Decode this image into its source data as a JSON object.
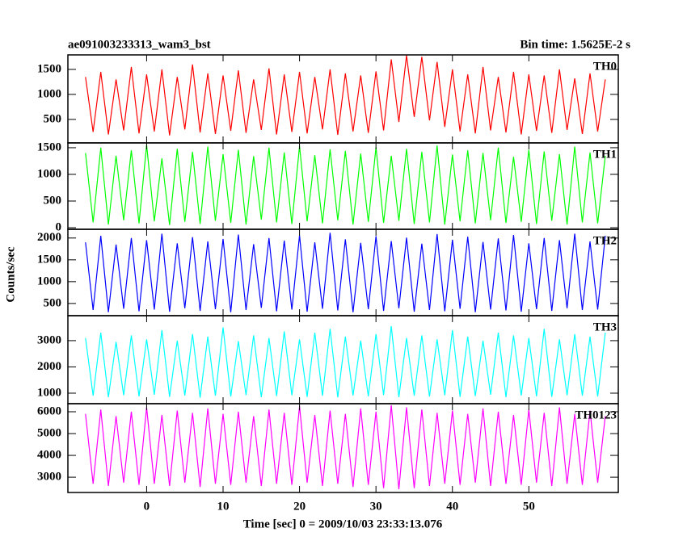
{
  "title": "ae091003233313_wam3_bst",
  "subtitle": "Bin time: 1.5625E-2 s",
  "ylabel": "Counts/sec",
  "xlabel": "Time [sec] 0 = 2009/10/03 23:33:13.076",
  "chart_data": [
    {
      "type": "line",
      "label": "TH0",
      "color": "#ff0000",
      "xlim": [
        -10.3,
        61.7
      ],
      "xticks": [
        0,
        10,
        20,
        30,
        40,
        50
      ],
      "ylim": [
        30,
        1790
      ],
      "yticks": [
        500,
        1000,
        1500
      ],
      "x": [
        -8,
        -7,
        -6,
        -5,
        -4,
        -3,
        -2,
        -1,
        0,
        1,
        2,
        3,
        4,
        5,
        6,
        7,
        8,
        9,
        10,
        11,
        12,
        13,
        14,
        15,
        16,
        17,
        18,
        19,
        20,
        21,
        22,
        23,
        24,
        25,
        26,
        27,
        28,
        29,
        30,
        31,
        32,
        33,
        34,
        35,
        36,
        37,
        38,
        39,
        40,
        41,
        42,
        43,
        44,
        45,
        46,
        47,
        48,
        49,
        50,
        51,
        52,
        53,
        54,
        55,
        56,
        57,
        58,
        59,
        60
      ],
      "values": [
        1350,
        250,
        1450,
        200,
        1300,
        280,
        1550,
        220,
        1400,
        260,
        1500,
        180,
        1350,
        300,
        1600,
        240,
        1420,
        210,
        1380,
        270,
        1480,
        230,
        1300,
        290,
        1520,
        200,
        1400,
        250,
        1450,
        220,
        1350,
        300,
        1500,
        190,
        1420,
        260,
        1380,
        230,
        1460,
        280,
        1700,
        450,
        1780,
        550,
        1750,
        480,
        1650,
        350,
        1500,
        260,
        1400,
        220,
        1550,
        280,
        1350,
        240,
        1450,
        200,
        1400,
        270,
        1380,
        230,
        1500,
        290,
        1320,
        210,
        1420,
        260,
        1300
      ]
    },
    {
      "type": "line",
      "label": "TH1",
      "color": "#00ff00",
      "xlim": [
        -10.3,
        61.7
      ],
      "xticks": [
        0,
        10,
        20,
        30,
        40,
        50
      ],
      "ylim": [
        -30,
        1590
      ],
      "yticks": [
        0,
        500,
        1000,
        1500
      ],
      "x": [
        -8,
        -7,
        -6,
        -5,
        -4,
        -3,
        -2,
        -1,
        0,
        1,
        2,
        3,
        4,
        5,
        6,
        7,
        8,
        9,
        10,
        11,
        12,
        13,
        14,
        15,
        16,
        17,
        18,
        19,
        20,
        21,
        22,
        23,
        24,
        25,
        26,
        27,
        28,
        29,
        30,
        31,
        32,
        33,
        34,
        35,
        36,
        37,
        38,
        39,
        40,
        41,
        42,
        43,
        44,
        45,
        46,
        47,
        48,
        49,
        50,
        51,
        52,
        53,
        54,
        55,
        56,
        57,
        58,
        59,
        60
      ],
      "values": [
        1400,
        100,
        1500,
        60,
        1350,
        140,
        1450,
        80,
        1550,
        120,
        1300,
        50,
        1480,
        110,
        1420,
        70,
        1520,
        130,
        1380,
        90,
        1460,
        60,
        1340,
        150,
        1500,
        100,
        1410,
        70,
        1530,
        120,
        1360,
        80,
        1470,
        140,
        1440,
        60,
        1390,
        110,
        1510,
        90,
        1350,
        130,
        1480,
        70,
        1420,
        100,
        1540,
        60,
        1370,
        120,
        1450,
        80,
        1400,
        140,
        1500,
        90,
        1330,
        110,
        1460,
        70,
        1430,
        130,
        1380,
        60,
        1520,
        100,
        1410,
        80,
        1350
      ]
    },
    {
      "type": "line",
      "label": "TH2",
      "color": "#0000ff",
      "xlim": [
        -10.3,
        61.7
      ],
      "xticks": [
        0,
        10,
        20,
        30,
        40,
        50
      ],
      "ylim": [
        220,
        2200
      ],
      "yticks": [
        500,
        1000,
        1500,
        2000
      ],
      "x": [
        -8,
        -7,
        -6,
        -5,
        -4,
        -3,
        -2,
        -1,
        0,
        1,
        2,
        3,
        4,
        5,
        6,
        7,
        8,
        9,
        10,
        11,
        12,
        13,
        14,
        15,
        16,
        17,
        18,
        19,
        20,
        21,
        22,
        23,
        24,
        25,
        26,
        27,
        28,
        29,
        30,
        31,
        32,
        33,
        34,
        35,
        36,
        37,
        38,
        39,
        40,
        41,
        42,
        43,
        44,
        45,
        46,
        47,
        48,
        49,
        50,
        51,
        52,
        53,
        54,
        55,
        56,
        57,
        58,
        59,
        60
      ],
      "values": [
        1900,
        350,
        2050,
        300,
        1850,
        380,
        2000,
        320,
        1950,
        360,
        2100,
        310,
        1880,
        390,
        2020,
        330,
        1920,
        370,
        1980,
        300,
        2080,
        350,
        1860,
        400,
        2000,
        320,
        1940,
        360,
        2060,
        310,
        1900,
        380,
        2120,
        340,
        1970,
        300,
        1890,
        370,
        2040,
        330,
        1930,
        390,
        2010,
        310,
        1870,
        350,
        2090,
        320,
        1960,
        380,
        2030,
        300,
        1910,
        360,
        1990,
        340,
        2070,
        310,
        1880,
        370,
        2000,
        330,
        1950,
        390,
        2100,
        350,
        1920,
        360,
        2050
      ]
    },
    {
      "type": "line",
      "label": "TH3",
      "color": "#00ffff",
      "xlim": [
        -10.3,
        61.7
      ],
      "xticks": [
        0,
        10,
        20,
        30,
        40,
        50
      ],
      "ylim": [
        600,
        3950
      ],
      "yticks": [
        1000,
        2000,
        3000
      ],
      "x": [
        -8,
        -7,
        -6,
        -5,
        -4,
        -3,
        -2,
        -1,
        0,
        1,
        2,
        3,
        4,
        5,
        6,
        7,
        8,
        9,
        10,
        11,
        12,
        13,
        14,
        15,
        16,
        17,
        18,
        19,
        20,
        21,
        22,
        23,
        24,
        25,
        26,
        27,
        28,
        29,
        30,
        31,
        32,
        33,
        34,
        35,
        36,
        37,
        38,
        39,
        40,
        41,
        42,
        43,
        44,
        45,
        46,
        47,
        48,
        49,
        50,
        51,
        52,
        53,
        54,
        55,
        56,
        57,
        58,
        59,
        60
      ],
      "values": [
        3100,
        900,
        3300,
        850,
        2950,
        920,
        3200,
        880,
        3050,
        940,
        3400,
        860,
        3000,
        910,
        3250,
        830,
        3150,
        900,
        3500,
        870,
        2980,
        930,
        3200,
        850,
        3100,
        890,
        3350,
        920,
        3050,
        860,
        3300,
        900,
        3450,
        840,
        3150,
        910,
        3000,
        880,
        3250,
        930,
        3550,
        850,
        3100,
        900,
        3200,
        870,
        3050,
        920,
        3400,
        860,
        3150,
        890,
        3000,
        940,
        3300,
        850,
        3200,
        910,
        3100,
        880,
        3450,
        860,
        3050,
        920,
        3250,
        900,
        3150,
        870,
        3300
      ]
    },
    {
      "type": "line",
      "label": "TH0123",
      "color": "#ff00ff",
      "xlim": [
        -10.3,
        61.7
      ],
      "xticks": [
        0,
        10,
        20,
        30,
        40,
        50
      ],
      "ylim": [
        2300,
        6370
      ],
      "yticks": [
        3000,
        4000,
        5000,
        6000
      ],
      "x": [
        -8,
        -7,
        -6,
        -5,
        -4,
        -3,
        -2,
        -1,
        0,
        1,
        2,
        3,
        4,
        5,
        6,
        7,
        8,
        9,
        10,
        11,
        12,
        13,
        14,
        15,
        16,
        17,
        18,
        19,
        20,
        21,
        22,
        23,
        24,
        25,
        26,
        27,
        28,
        29,
        30,
        31,
        32,
        33,
        34,
        35,
        36,
        37,
        38,
        39,
        40,
        41,
        42,
        43,
        44,
        45,
        46,
        47,
        48,
        49,
        50,
        51,
        52,
        53,
        54,
        55,
        56,
        57,
        58,
        59,
        60
      ],
      "values": [
        5900,
        2700,
        6100,
        2600,
        5800,
        2750,
        6000,
        2650,
        6200,
        2700,
        5850,
        2600,
        6050,
        2750,
        5950,
        2550,
        6150,
        2700,
        5900,
        2650,
        6000,
        2750,
        5800,
        2600,
        6100,
        2700,
        5950,
        2650,
        6250,
        2750,
        5850,
        2600,
        6050,
        2700,
        5900,
        2550,
        6150,
        2650,
        6000,
        2500,
        6300,
        2450,
        6200,
        2500,
        6100,
        2600,
        5950,
        2700,
        6050,
        2650,
        5900,
        2750,
        6150,
        2600,
        6000,
        2700,
        5850,
        2650,
        6100,
        2750,
        5950,
        2600,
        6200,
        2700,
        5900,
        2650,
        6050,
        2750,
        5800
      ]
    }
  ]
}
